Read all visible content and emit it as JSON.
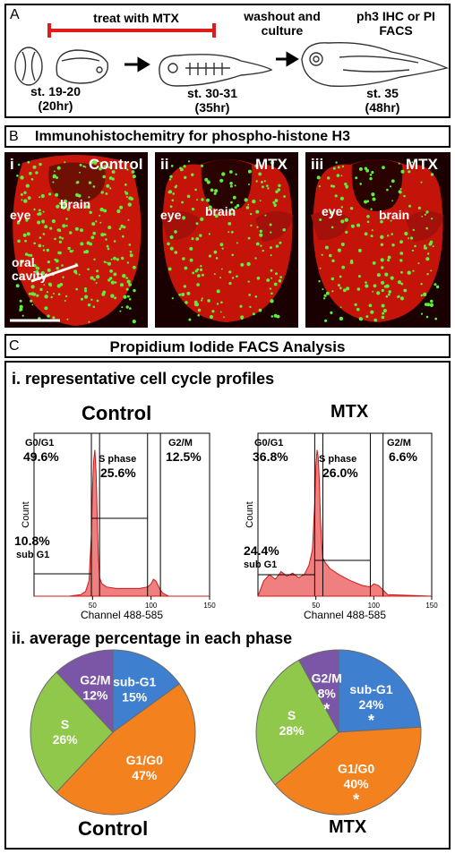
{
  "panelA": {
    "letter": "A",
    "treat_label": "treat with MTX",
    "washout_label": "washout and culture",
    "ph3_label": "ph3 IHC or PI FACS",
    "stage1": "st. 19-20",
    "stage1_time": "(20hr)",
    "stage2": "st. 30-31",
    "stage2_time": "(35hr)",
    "stage3": "st. 35",
    "stage3_time": "(48hr)"
  },
  "panelB": {
    "letter": "B",
    "title": "Immunohistochemitry for phospho-histone H3",
    "images": [
      {
        "numeral": "i",
        "condition": "Control",
        "eye": "eye",
        "brain": "brain",
        "oral": "oral cavity"
      },
      {
        "numeral": "ii",
        "condition": "MTX",
        "eye": "eye",
        "brain": "brain"
      },
      {
        "numeral": "iii",
        "condition": "MTX",
        "eye": "eye",
        "brain": "brain"
      }
    ]
  },
  "panelC": {
    "letter": "C",
    "title": "Propidium Iodide FACS Analysis",
    "sub1": "i. representative cell cycle profiles",
    "sub2": "ii. average percentage in each phase",
    "histogram_titles": [
      "Control",
      "MTX"
    ],
    "pie_titles": [
      "Control",
      "MTX"
    ]
  },
  "chart_data": [
    {
      "type": "area",
      "title": "Control",
      "xlabel": "Channel 488-585",
      "ylabel": "Count",
      "xlim": [
        0,
        150
      ],
      "xticks": [
        "50",
        "100",
        "150"
      ],
      "gates": [
        {
          "label": "G0/G1",
          "value": "49.6%"
        },
        {
          "label": "S phase",
          "value": "25.6%"
        },
        {
          "label": "G2/M",
          "value": "12.5%"
        },
        {
          "label": "sub G1",
          "value": "10.8%"
        }
      ],
      "x": [
        0,
        10,
        20,
        30,
        40,
        44,
        47,
        49,
        50,
        51,
        52,
        53,
        54,
        55,
        56,
        58,
        62,
        70,
        80,
        90,
        97,
        100,
        102,
        104,
        106,
        108,
        110,
        115,
        150
      ],
      "y": [
        0,
        0,
        0,
        0,
        1,
        3,
        10,
        40,
        70,
        88,
        95,
        80,
        50,
        25,
        12,
        8,
        6,
        5,
        5,
        5,
        6,
        8,
        11,
        10,
        7,
        4,
        2,
        0,
        0
      ]
    },
    {
      "type": "area",
      "title": "MTX",
      "xlabel": "Channel 488-585",
      "ylabel": "Count",
      "xlim": [
        0,
        150
      ],
      "xticks": [
        "50",
        "100",
        "150"
      ],
      "gates": [
        {
          "label": "G0/G1",
          "value": "36.8%"
        },
        {
          "label": "S phase",
          "value": "26.0%"
        },
        {
          "label": "G2/M",
          "value": "6.6%"
        },
        {
          "label": "sub G1",
          "value": "24.4%"
        }
      ],
      "x": [
        0,
        5,
        10,
        15,
        20,
        25,
        30,
        35,
        40,
        44,
        47,
        49,
        50,
        51,
        52,
        53,
        54,
        55,
        56,
        58,
        62,
        66,
        70,
        75,
        80,
        90,
        97,
        100,
        104,
        108,
        112,
        150
      ],
      "y": [
        0,
        10,
        14,
        11,
        16,
        13,
        15,
        12,
        14,
        20,
        30,
        60,
        85,
        95,
        90,
        75,
        50,
        35,
        25,
        22,
        18,
        16,
        14,
        12,
        10,
        7,
        6,
        8,
        7,
        4,
        1,
        0
      ]
    },
    {
      "type": "pie",
      "title": "Control",
      "slices": [
        {
          "label": "sub-G1",
          "value": 15,
          "text": "15%",
          "color": "#3f7fd0"
        },
        {
          "label": "G1/G0",
          "value": 47,
          "text": "47%",
          "color": "#f3821e"
        },
        {
          "label": "S",
          "value": 26,
          "text": "26%",
          "color": "#8fc84a"
        },
        {
          "label": "G2/M",
          "value": 12,
          "text": "12%",
          "color": "#7b56a6"
        }
      ]
    },
    {
      "type": "pie",
      "title": "MTX",
      "slices": [
        {
          "label": "sub-G1",
          "value": 24,
          "text": "24%",
          "color": "#3f7fd0",
          "mark": "*"
        },
        {
          "label": "G1/G0",
          "value": 40,
          "text": "40%",
          "color": "#f3821e",
          "mark": "*"
        },
        {
          "label": "S",
          "value": 28,
          "text": "28%",
          "color": "#8fc84a"
        },
        {
          "label": "G2/M",
          "value": 8,
          "text": "8%",
          "color": "#7b56a6",
          "mark": "*"
        }
      ]
    }
  ]
}
